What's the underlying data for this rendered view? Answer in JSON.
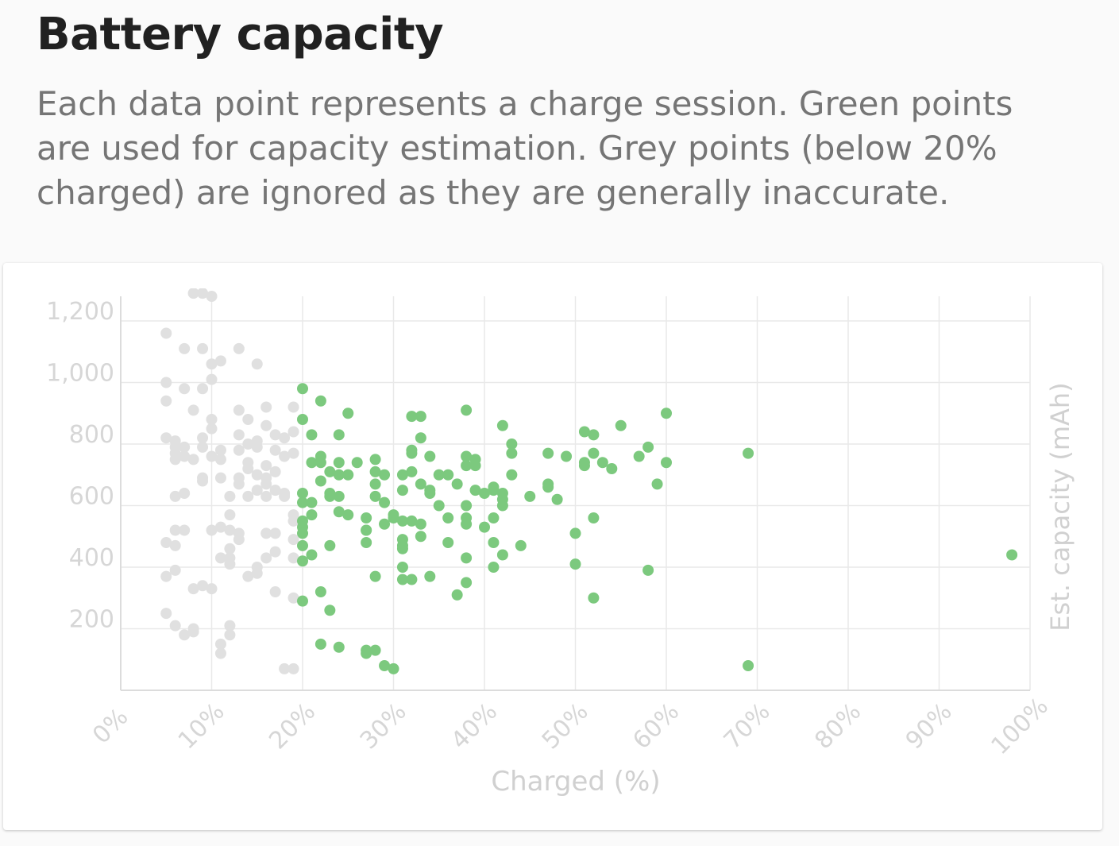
{
  "header": {
    "title": "Battery capacity",
    "description": "Each data point represents a charge session. Green points are used for capacity estimation. Grey points (below 20% charged) are ignored as they are generally inaccurate."
  },
  "colors": {
    "included_point": "#7cc97e",
    "ignored_point": "#e0e0e0",
    "grid": "#e9e9e9",
    "axis": "#dcdcdc",
    "tick_text": "#d6d6d6",
    "axis_title": "#d0d0d0"
  },
  "chart_data": {
    "type": "scatter",
    "title": "",
    "xlabel": "Charged (%)",
    "ylabel": "Est. capacity (mAh)",
    "ylabel_position": "right",
    "xlim": [
      0,
      100
    ],
    "ylim": [
      0,
      1280
    ],
    "x_ticks": [
      "0%",
      "10%",
      "20%",
      "30%",
      "40%",
      "50%",
      "60%",
      "70%",
      "80%",
      "90%",
      "100%"
    ],
    "y_ticks": [
      "200",
      "400",
      "600",
      "800",
      "1,000",
      "1,200"
    ],
    "grid": true,
    "legend": "none",
    "series": [
      {
        "color": "#e0e0e0",
        "points": [
          [
            8,
            1290
          ],
          [
            9,
            1290
          ],
          [
            10,
            1280
          ],
          [
            5,
            1160
          ],
          [
            7,
            1110
          ],
          [
            9,
            1110
          ],
          [
            13,
            1110
          ],
          [
            11,
            1070
          ],
          [
            10,
            1060
          ],
          [
            15,
            1060
          ],
          [
            5,
            1000
          ],
          [
            10,
            1010
          ],
          [
            7,
            980
          ],
          [
            9,
            980
          ],
          [
            5,
            940
          ],
          [
            8,
            910
          ],
          [
            13,
            910
          ],
          [
            16,
            920
          ],
          [
            19,
            920
          ],
          [
            10,
            880
          ],
          [
            14,
            880
          ],
          [
            16,
            860
          ],
          [
            10,
            850
          ],
          [
            13,
            830
          ],
          [
            17,
            830
          ],
          [
            18,
            820
          ],
          [
            19,
            840
          ],
          [
            5,
            820
          ],
          [
            6,
            810
          ],
          [
            9,
            820
          ],
          [
            6,
            790
          ],
          [
            7,
            790
          ],
          [
            9,
            790
          ],
          [
            11,
            780
          ],
          [
            13,
            780
          ],
          [
            14,
            800
          ],
          [
            15,
            790
          ],
          [
            15,
            810
          ],
          [
            17,
            780
          ],
          [
            19,
            770
          ],
          [
            6,
            770
          ],
          [
            7,
            760
          ],
          [
            10,
            760
          ],
          [
            11,
            750
          ],
          [
            18,
            760
          ],
          [
            6,
            750
          ],
          [
            8,
            750
          ],
          [
            14,
            740
          ],
          [
            16,
            730
          ],
          [
            17,
            710
          ],
          [
            9,
            690
          ],
          [
            11,
            690
          ],
          [
            9,
            680
          ],
          [
            13,
            690
          ],
          [
            14,
            720
          ],
          [
            15,
            700
          ],
          [
            13,
            670
          ],
          [
            16,
            690
          ],
          [
            16,
            670
          ],
          [
            15,
            650
          ],
          [
            17,
            650
          ],
          [
            7,
            640
          ],
          [
            6,
            630
          ],
          [
            12,
            630
          ],
          [
            14,
            630
          ],
          [
            16,
            630
          ],
          [
            18,
            640
          ],
          [
            18,
            630
          ],
          [
            12,
            570
          ],
          [
            19,
            570
          ],
          [
            19,
            550
          ],
          [
            6,
            520
          ],
          [
            7,
            520
          ],
          [
            10,
            520
          ],
          [
            11,
            530
          ],
          [
            12,
            520
          ],
          [
            13,
            510
          ],
          [
            16,
            510
          ],
          [
            17,
            510
          ],
          [
            5,
            480
          ],
          [
            6,
            470
          ],
          [
            13,
            490
          ],
          [
            19,
            490
          ],
          [
            12,
            460
          ],
          [
            17,
            450
          ],
          [
            11,
            430
          ],
          [
            12,
            430
          ],
          [
            12,
            410
          ],
          [
            16,
            430
          ],
          [
            19,
            430
          ],
          [
            6,
            390
          ],
          [
            5,
            370
          ],
          [
            14,
            370
          ],
          [
            15,
            380
          ],
          [
            15,
            400
          ],
          [
            8,
            330
          ],
          [
            9,
            340
          ],
          [
            10,
            330
          ],
          [
            17,
            320
          ],
          [
            19,
            300
          ],
          [
            5,
            250
          ],
          [
            6,
            210
          ],
          [
            12,
            210
          ],
          [
            7,
            180
          ],
          [
            8,
            190
          ],
          [
            8,
            200
          ],
          [
            12,
            180
          ],
          [
            11,
            150
          ],
          [
            11,
            120
          ],
          [
            18,
            70
          ],
          [
            19,
            70
          ]
        ]
      },
      {
        "color": "#7cc97e",
        "points": [
          [
            20,
            980
          ],
          [
            22,
            940
          ],
          [
            25,
            900
          ],
          [
            32,
            890
          ],
          [
            33,
            890
          ],
          [
            38,
            910
          ],
          [
            42,
            860
          ],
          [
            55,
            860
          ],
          [
            60,
            900
          ],
          [
            20,
            880
          ],
          [
            21,
            830
          ],
          [
            24,
            830
          ],
          [
            33,
            820
          ],
          [
            43,
            800
          ],
          [
            51,
            840
          ],
          [
            52,
            830
          ],
          [
            22,
            760
          ],
          [
            24,
            740
          ],
          [
            26,
            740
          ],
          [
            28,
            750
          ],
          [
            32,
            780
          ],
          [
            32,
            770
          ],
          [
            34,
            760
          ],
          [
            38,
            760
          ],
          [
            39,
            750
          ],
          [
            43,
            770
          ],
          [
            47,
            770
          ],
          [
            49,
            760
          ],
          [
            52,
            770
          ],
          [
            53,
            740
          ],
          [
            57,
            760
          ],
          [
            58,
            790
          ],
          [
            69,
            770
          ],
          [
            21,
            740
          ],
          [
            22,
            740
          ],
          [
            23,
            710
          ],
          [
            24,
            700
          ],
          [
            25,
            700
          ],
          [
            28,
            710
          ],
          [
            29,
            700
          ],
          [
            31,
            700
          ],
          [
            32,
            710
          ],
          [
            38,
            730
          ],
          [
            39,
            730
          ],
          [
            43,
            700
          ],
          [
            51,
            740
          ],
          [
            51,
            730
          ],
          [
            54,
            720
          ],
          [
            60,
            740
          ],
          [
            22,
            680
          ],
          [
            28,
            670
          ],
          [
            33,
            670
          ],
          [
            35,
            700
          ],
          [
            36,
            700
          ],
          [
            37,
            670
          ],
          [
            47,
            670
          ],
          [
            47,
            660
          ],
          [
            59,
            670
          ],
          [
            20,
            640
          ],
          [
            23,
            640
          ],
          [
            23,
            630
          ],
          [
            24,
            630
          ],
          [
            28,
            630
          ],
          [
            31,
            650
          ],
          [
            34,
            650
          ],
          [
            34,
            640
          ],
          [
            39,
            650
          ],
          [
            40,
            640
          ],
          [
            41,
            650
          ],
          [
            41,
            660
          ],
          [
            42,
            640
          ],
          [
            42,
            620
          ],
          [
            45,
            630
          ],
          [
            48,
            620
          ],
          [
            20,
            610
          ],
          [
            21,
            610
          ],
          [
            29,
            610
          ],
          [
            35,
            600
          ],
          [
            38,
            600
          ],
          [
            42,
            600
          ],
          [
            21,
            570
          ],
          [
            25,
            570
          ],
          [
            27,
            560
          ],
          [
            30,
            570
          ],
          [
            30,
            560
          ],
          [
            31,
            550
          ],
          [
            32,
            550
          ],
          [
            36,
            560
          ],
          [
            38,
            560
          ],
          [
            41,
            560
          ],
          [
            52,
            560
          ],
          [
            20,
            550
          ],
          [
            20,
            530
          ],
          [
            24,
            580
          ],
          [
            27,
            520
          ],
          [
            27,
            520
          ],
          [
            29,
            540
          ],
          [
            33,
            540
          ],
          [
            38,
            540
          ],
          [
            40,
            530
          ],
          [
            20,
            510
          ],
          [
            31,
            490
          ],
          [
            33,
            500
          ],
          [
            50,
            510
          ],
          [
            20,
            470
          ],
          [
            23,
            470
          ],
          [
            27,
            480
          ],
          [
            31,
            470
          ],
          [
            31,
            460
          ],
          [
            36,
            480
          ],
          [
            41,
            480
          ],
          [
            44,
            470
          ],
          [
            20,
            420
          ],
          [
            21,
            440
          ],
          [
            38,
            430
          ],
          [
            42,
            440
          ],
          [
            50,
            410
          ],
          [
            31,
            400
          ],
          [
            41,
            400
          ],
          [
            58,
            390
          ],
          [
            28,
            370
          ],
          [
            31,
            360
          ],
          [
            32,
            360
          ],
          [
            34,
            370
          ],
          [
            38,
            350
          ],
          [
            22,
            320
          ],
          [
            20,
            290
          ],
          [
            37,
            310
          ],
          [
            52,
            300
          ],
          [
            23,
            260
          ],
          [
            22,
            150
          ],
          [
            24,
            140
          ],
          [
            27,
            130
          ],
          [
            27,
            120
          ],
          [
            28,
            130
          ],
          [
            29,
            80
          ],
          [
            30,
            70
          ],
          [
            69,
            80
          ],
          [
            98,
            440
          ]
        ]
      }
    ]
  }
}
